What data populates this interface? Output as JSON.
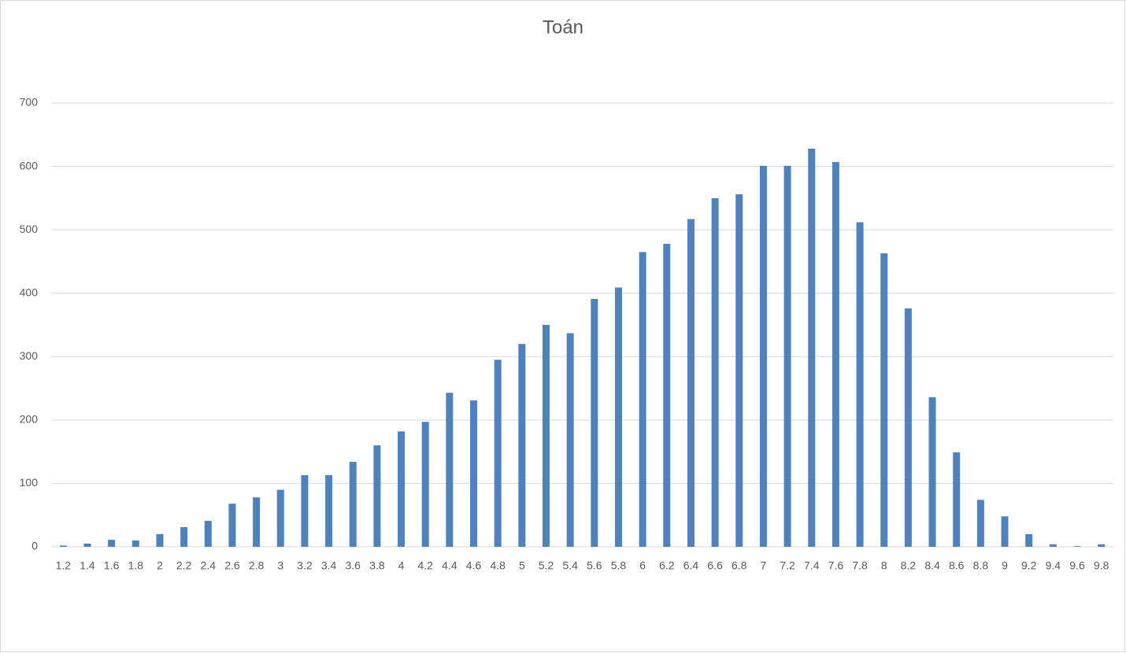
{
  "chart_data": {
    "type": "bar",
    "title": "Toán",
    "categories": [
      "1.2",
      "1.4",
      "1.6",
      "1.8",
      "2",
      "2.2",
      "2.4",
      "2.6",
      "2.8",
      "3",
      "3.2",
      "3.4",
      "3.6",
      "3.8",
      "4",
      "4.2",
      "4.4",
      "4.6",
      "4.8",
      "5",
      "5.2",
      "5.4",
      "5.6",
      "5.8",
      "6",
      "6.2",
      "6.4",
      "6.6",
      "6.8",
      "7",
      "7.2",
      "7.4",
      "7.6",
      "7.8",
      "8",
      "8.2",
      "8.4",
      "8.6",
      "8.8",
      "9",
      "9.2",
      "9.4",
      "9.6",
      "9.8"
    ],
    "values": [
      2,
      5,
      11,
      10,
      20,
      31,
      41,
      68,
      78,
      90,
      113,
      113,
      134,
      160,
      182,
      197,
      243,
      231,
      295,
      320,
      350,
      337,
      391,
      409,
      465,
      478,
      517,
      550,
      556,
      601,
      601,
      628,
      607,
      512,
      463,
      376,
      236,
      149,
      74,
      48,
      20,
      4,
      1,
      4
    ],
    "color": "#4f81bd",
    "ylim": [
      0,
      700
    ],
    "yticks": [
      0,
      100,
      200,
      300,
      400,
      500,
      600,
      700
    ],
    "grid": true
  }
}
